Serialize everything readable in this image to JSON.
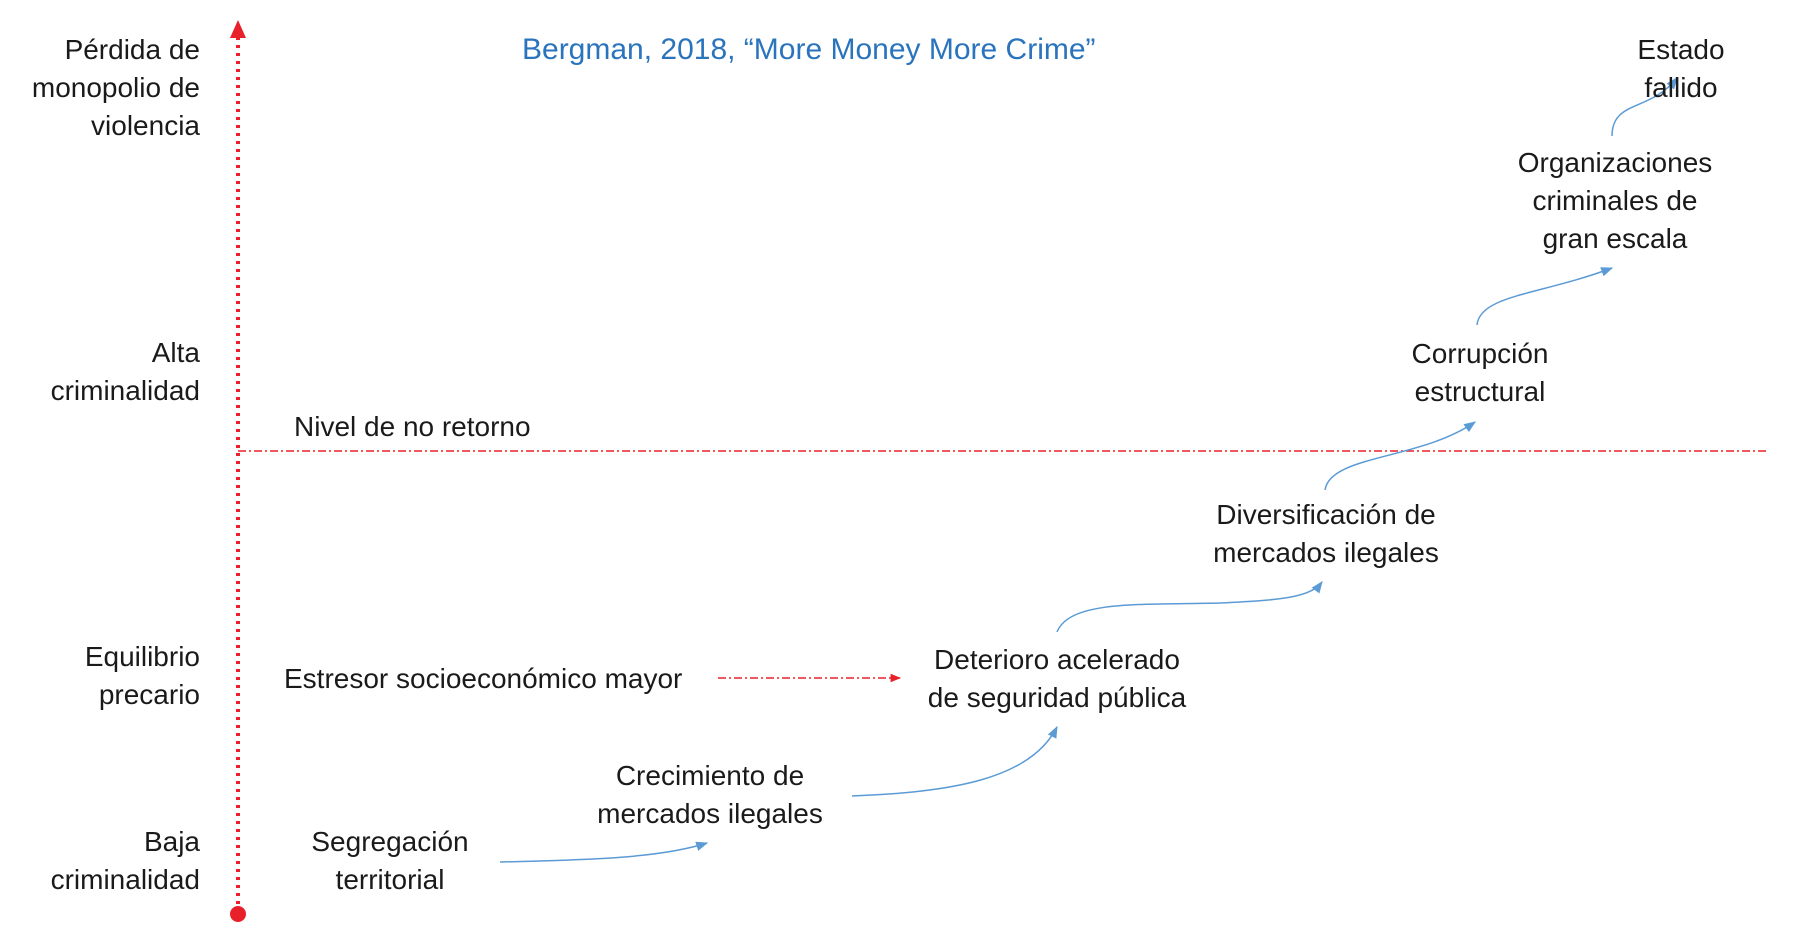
{
  "title": "Bergman, 2018, “More Money More Crime”",
  "colors": {
    "title": "#2a73bd",
    "axis": "#e8202a",
    "threshold": "#e8202a",
    "flow_arrow": "#5b9bd5",
    "stressor_arrow": "#e8202a",
    "text": "#1a1a1a"
  },
  "axis": {
    "levels": [
      "Pérdida de\nmonopolio de\nviolencia",
      "Alta\ncriminalidad",
      "Equilibrio\nprecario",
      "Baja\ncriminalidad"
    ]
  },
  "threshold": {
    "label": "Nivel de no retorno"
  },
  "stressor": {
    "label": "Estresor socioeconómico mayor"
  },
  "stages": [
    "Segregación\nterritorial",
    "Crecimiento de\nmercados ilegales",
    "Deterioro acelerado\nde seguridad pública",
    "Diversificación de\nmercados ilegales",
    "Corrupción\nestructural",
    "Organizaciones\ncriminales de\ngran escala",
    "Estado fallido"
  ]
}
